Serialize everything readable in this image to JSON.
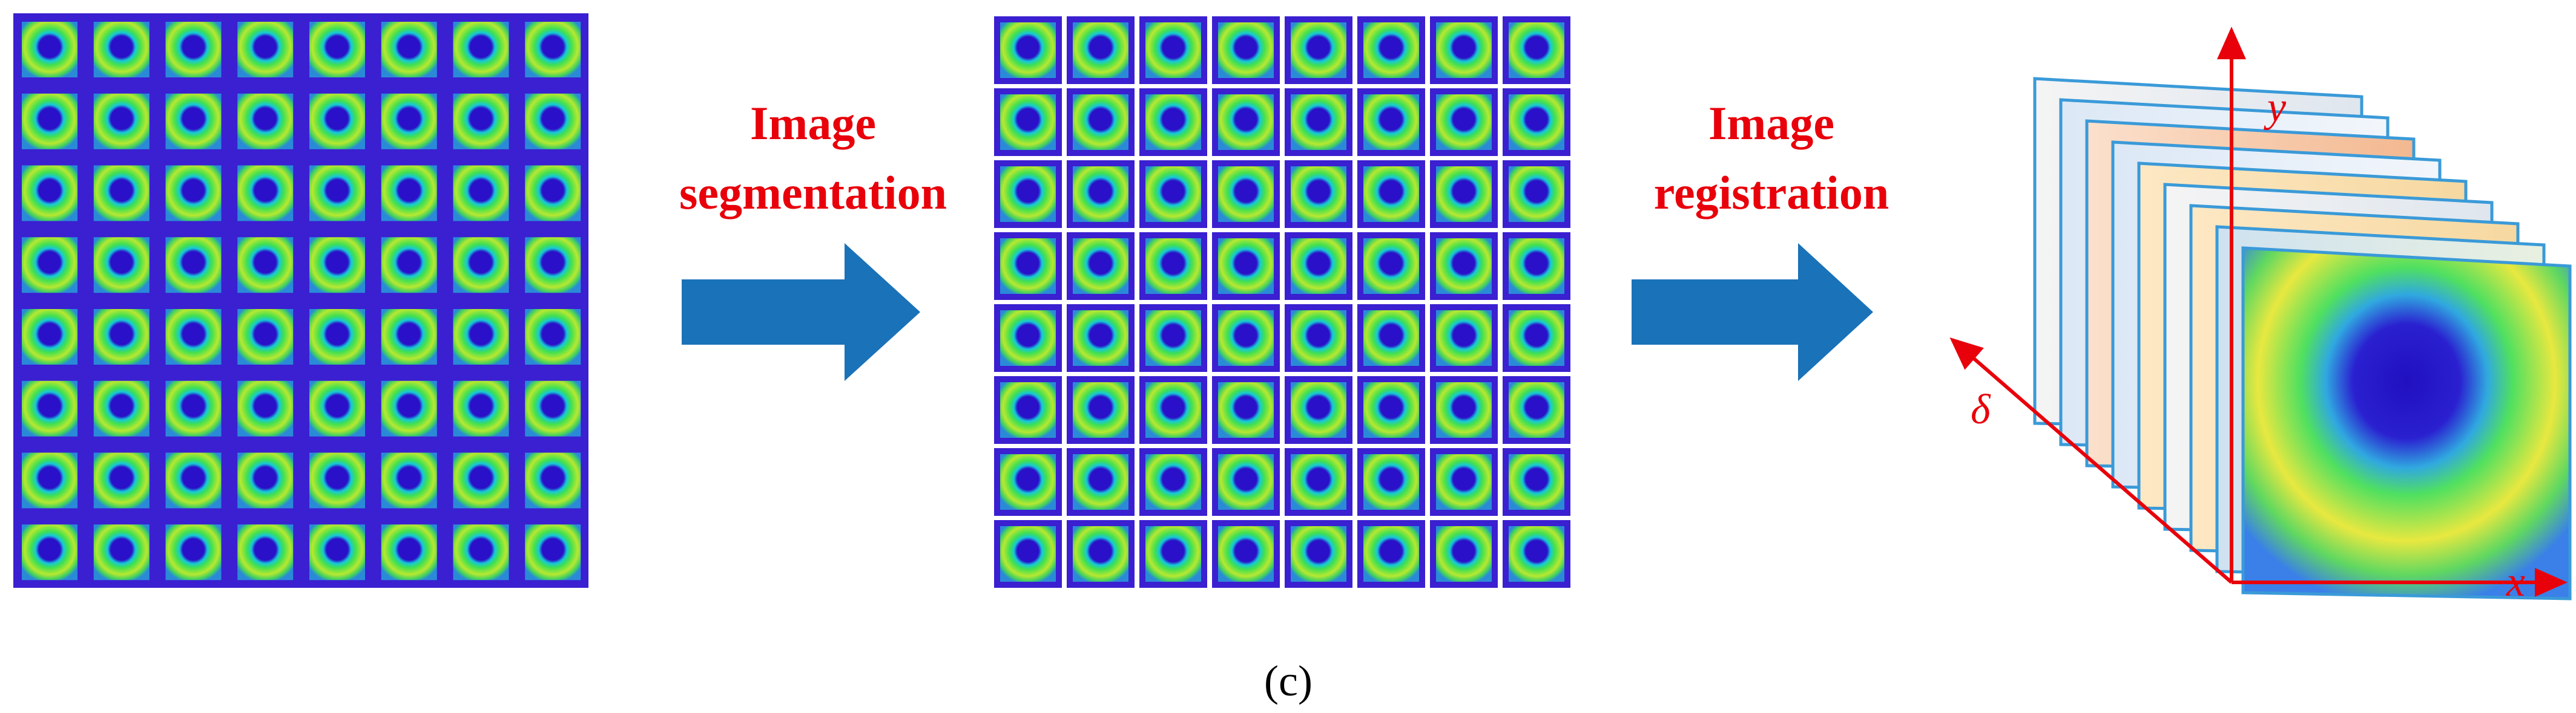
{
  "steps": [
    {
      "label_lines": [
        "Image",
        "segmentation"
      ]
    },
    {
      "label_lines": [
        "Image",
        "registration"
      ]
    }
  ],
  "axes": {
    "y": "y",
    "delta": "δ",
    "x": "x"
  },
  "caption": "(c)"
}
